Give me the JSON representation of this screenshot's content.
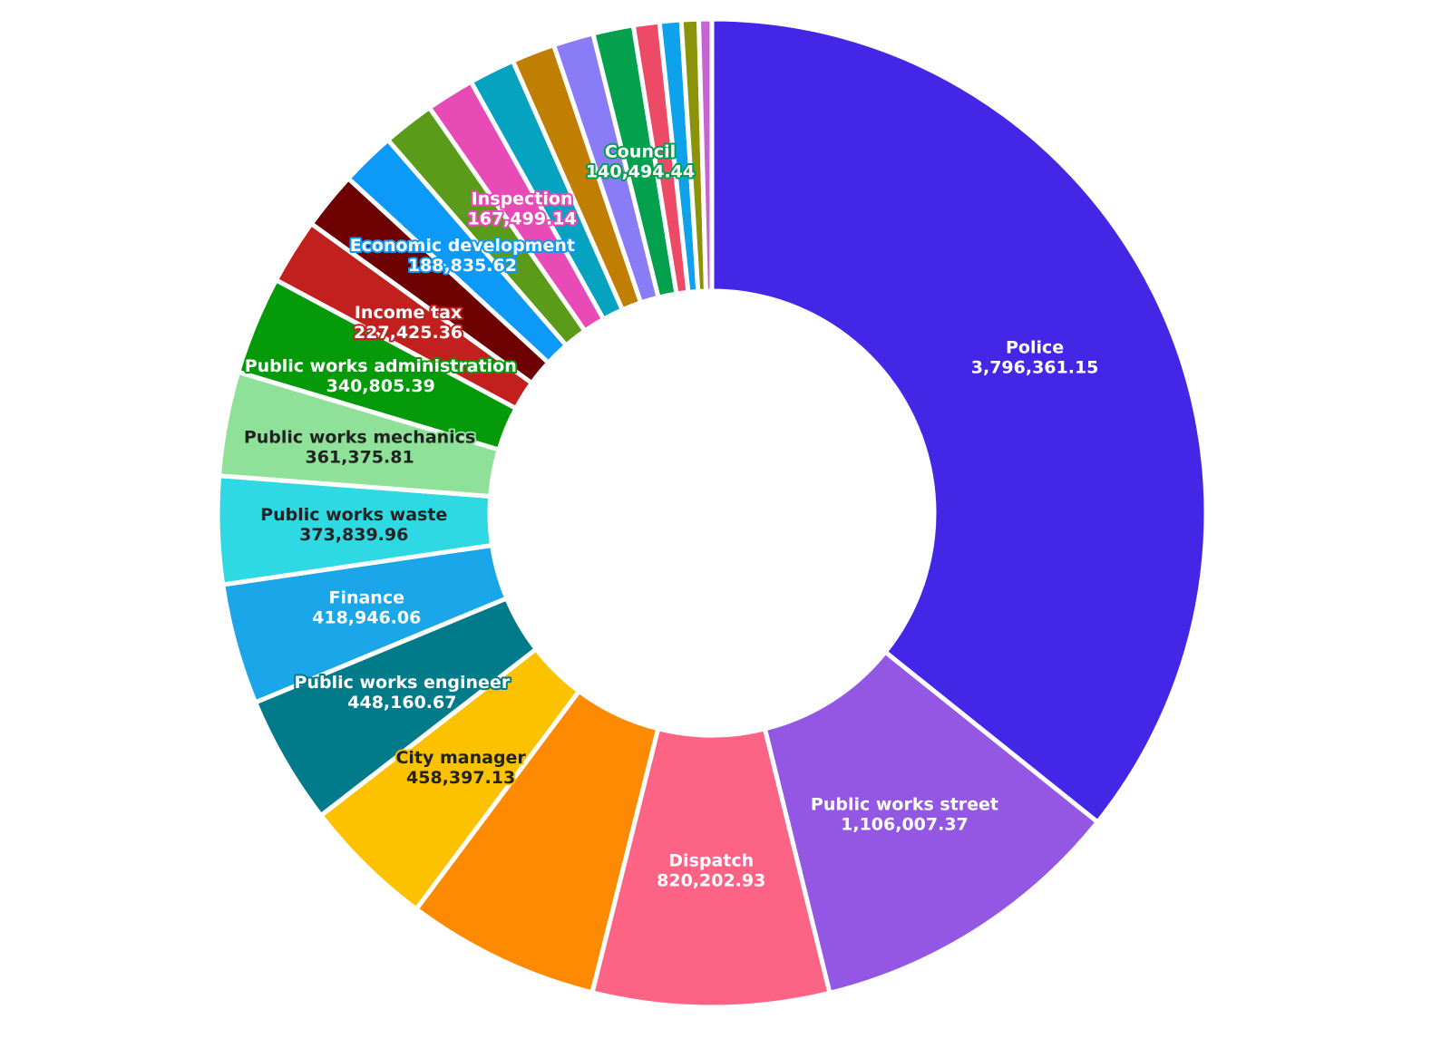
{
  "chart_data": {
    "type": "donut",
    "categories": [
      "Police",
      "Public works street",
      "Dispatch",
      null,
      "City manager",
      "Public works engineer",
      "Finance",
      "Public works waste",
      "Public works mechanics",
      "Public works administration",
      "Income tax",
      null,
      "Economic development",
      null,
      "Inspection",
      null,
      null,
      null,
      "Council",
      null,
      null,
      null,
      null
    ],
    "values": [
      3796361.15,
      1106007.37,
      820202.93,
      670000,
      458397.13,
      448160.67,
      418946.06,
      373839.96,
      361375.81,
      340805.39,
      227425.36,
      200000,
      188835.62,
      180000,
      167499.14,
      160000,
      150000,
      140000,
      140494.44,
      90000,
      75000,
      60000,
      45000
    ],
    "value_labels": [
      "3,796,361.15",
      "1,106,007.37",
      "820,202.93",
      null,
      "458,397.13",
      "448,160.67",
      "418,946.06",
      "373,839.96",
      "361,375.81",
      "340,805.39",
      "227,425.36",
      null,
      "188,835.62",
      null,
      "167,499.14",
      null,
      null,
      null,
      "140,494.44",
      null,
      null,
      null,
      null
    ],
    "colors": [
      "#4427e6",
      "#9457e3",
      "#fd6385",
      "#fd8a00",
      "#fcc200",
      "#017b89",
      "#1aa6e8",
      "#2ed9e3",
      "#8fe19a",
      "#049a0a",
      "#c1201f",
      "#6d0000",
      "#0d99f8",
      "#5a9b1a",
      "#e84bb5",
      "#06a3c1",
      "#c07e02",
      "#8a7cf6",
      "#03a04d",
      "#ec4a67",
      "#0ea1ec",
      "#8b9308",
      "#c664d4"
    ]
  }
}
